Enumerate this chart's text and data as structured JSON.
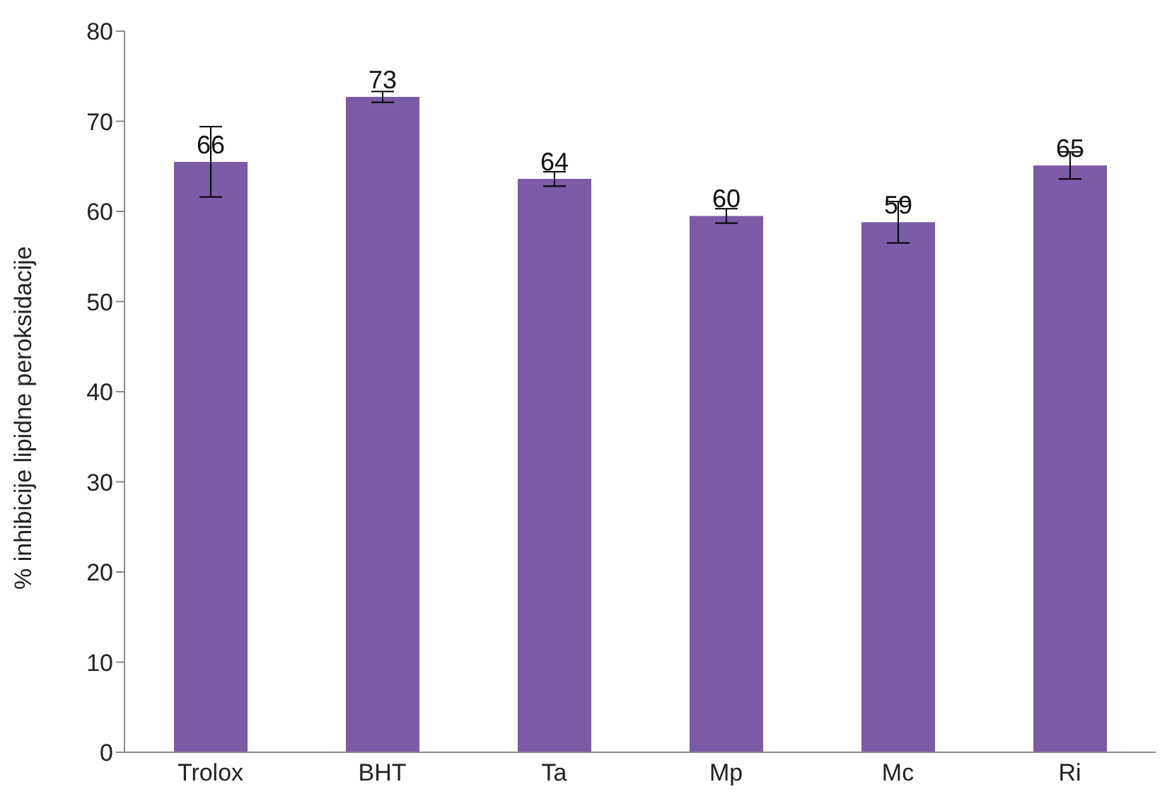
{
  "chart_data": {
    "type": "bar",
    "ylabel": "% inhibicije lipidne peroksidacije",
    "categories": [
      "Trolox",
      "BHT",
      "Ta",
      "Mp",
      "Mc",
      "Ri"
    ],
    "values": [
      65.5,
      72.7,
      63.6,
      59.5,
      58.8,
      65.1
    ],
    "errors": [
      3.9,
      0.6,
      0.8,
      0.8,
      2.3,
      1.5
    ],
    "value_labels": [
      "66",
      "73",
      "64",
      "60",
      "59",
      "65"
    ],
    "color": "#7b5aa6",
    "ylim": [
      0,
      80
    ],
    "yticks": [
      0,
      10,
      20,
      30,
      40,
      50,
      60,
      70,
      80
    ],
    "grid": false,
    "legend": false
  }
}
